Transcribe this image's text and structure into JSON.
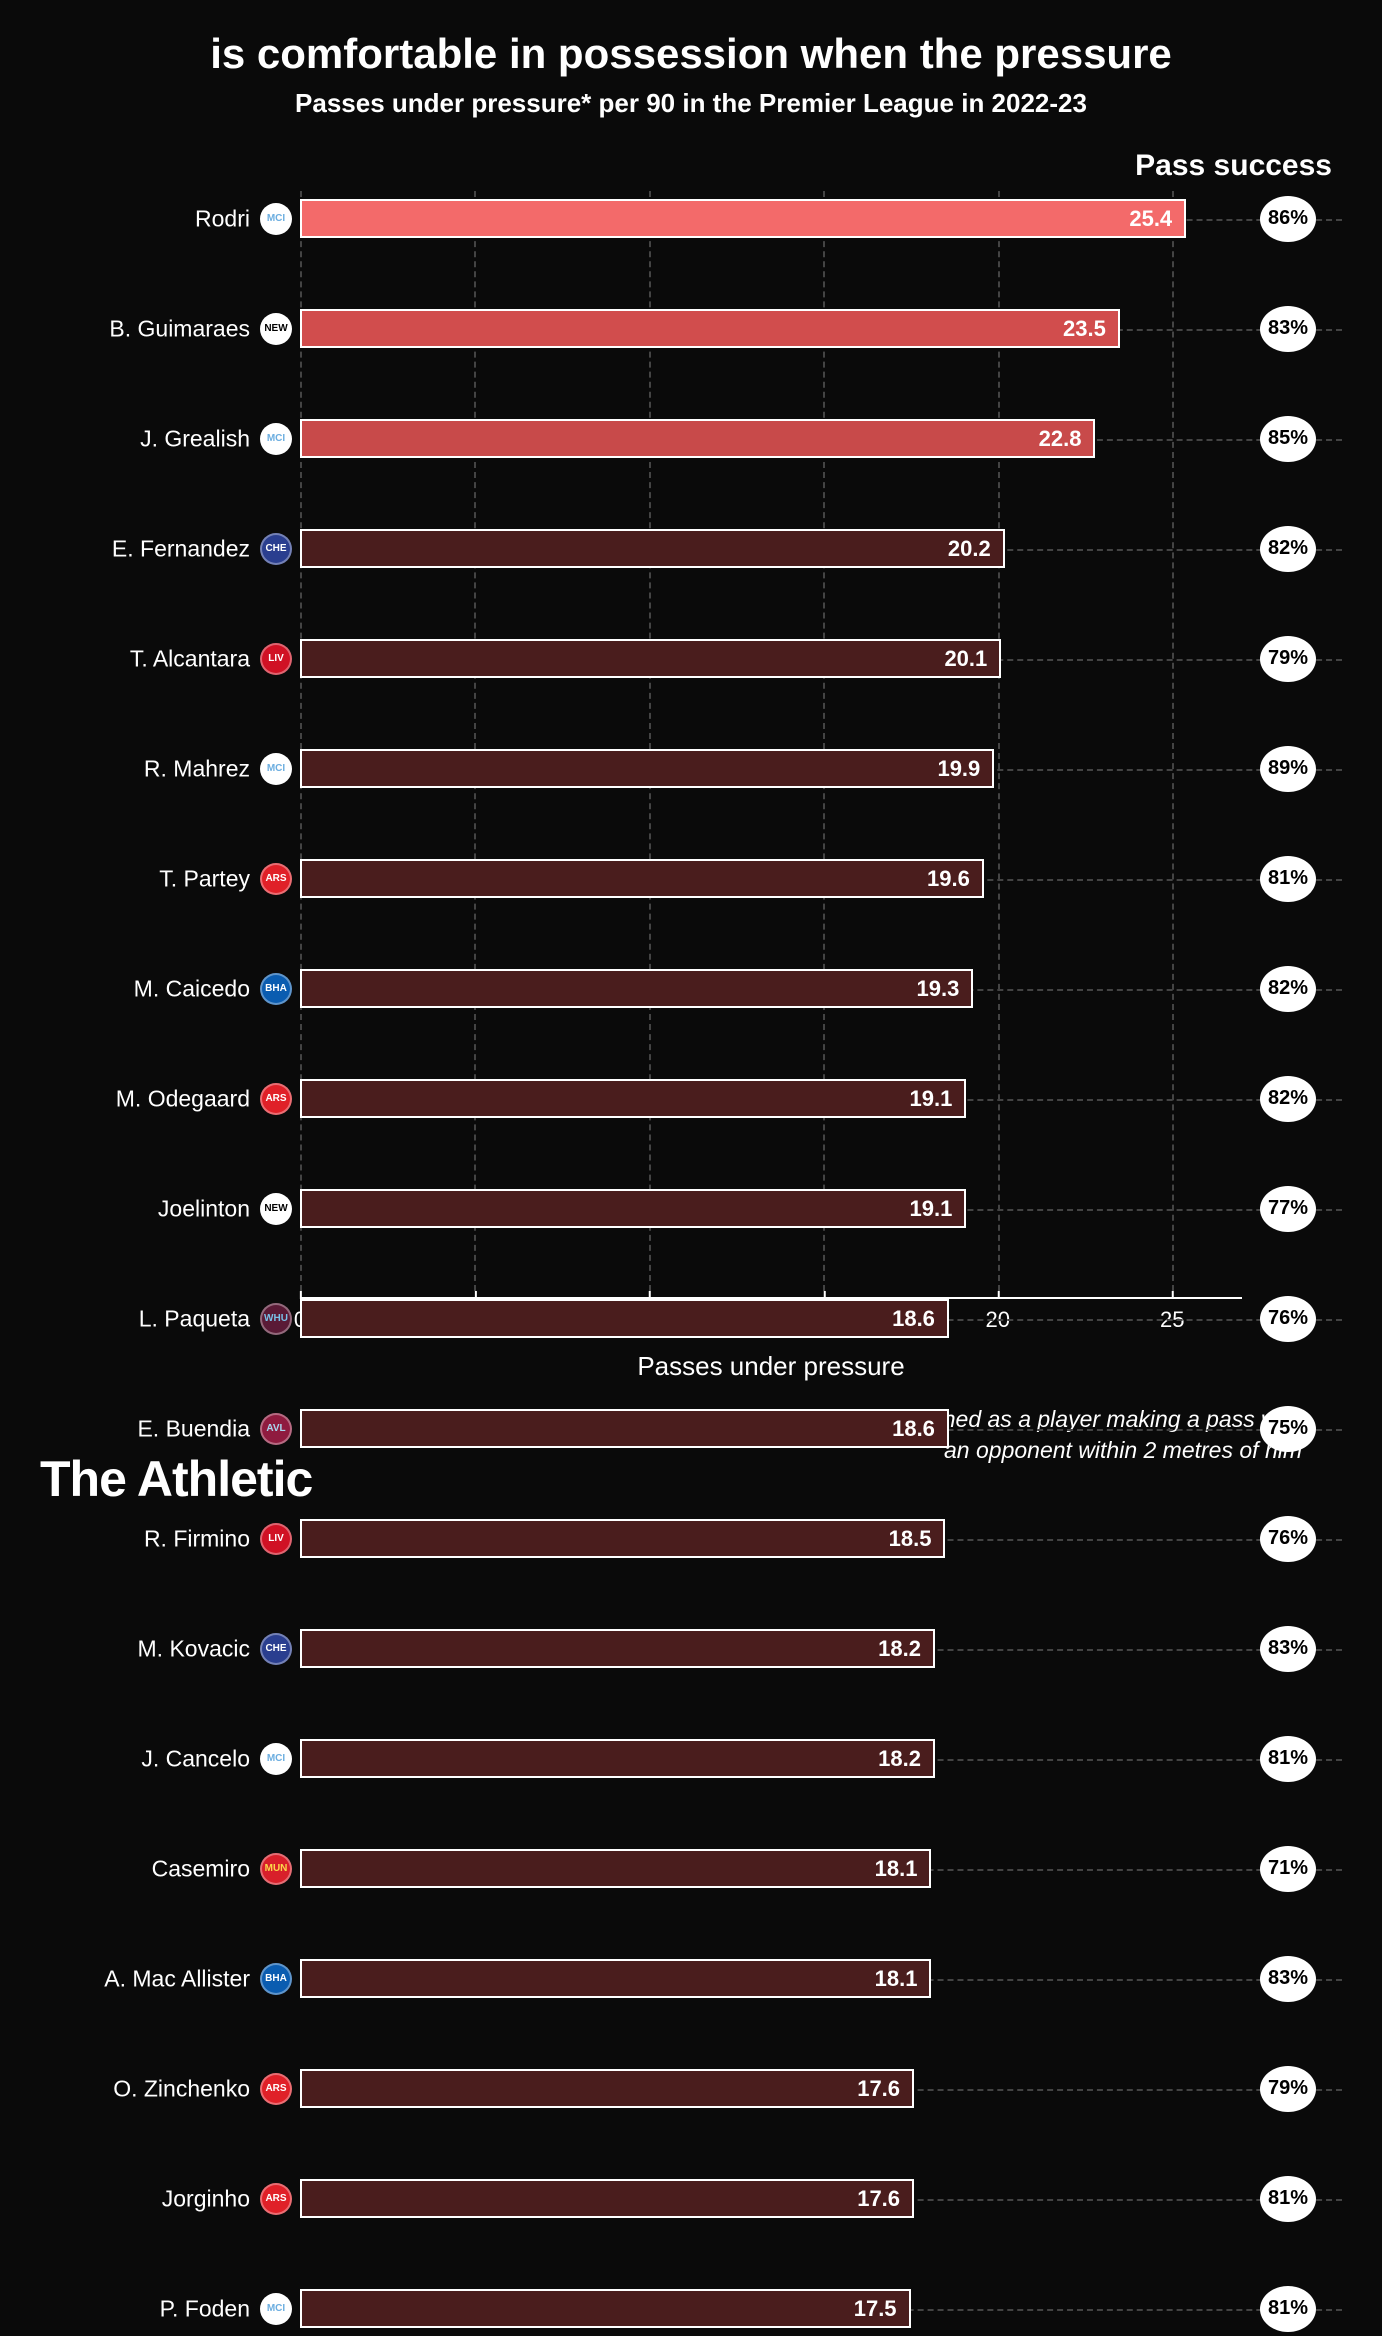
{
  "title": "is comfortable in possession when the pressure",
  "subtitle": "Passes under pressure* per 90 in the Premier League in 2022-23",
  "pass_success_header": "Pass success",
  "x_axis_label": "Passes under pressure",
  "footnote_line1": "*Defined as a player making a pass with",
  "footnote_line2": "an opponent within 2 metres of him",
  "brand": "The Athletic",
  "chart": {
    "type": "horizontal-bar",
    "xmin": 0,
    "xmax": 27,
    "xticks": [
      0,
      5,
      10,
      15,
      20,
      25
    ],
    "bar_colors": {
      "highlight_1": "#f36a6a",
      "highlight_2": "#d14d4d",
      "highlight_3": "#c84a4a",
      "normal": "#4a1d1d"
    },
    "bar_border_color": "#ffffff",
    "background_color": "#0a0a0a",
    "grid_color": "#444444",
    "text_color": "#ffffff",
    "badge_bg": "#ffffff",
    "badge_text": "#000000",
    "title_fontsize": 42,
    "subtitle_fontsize": 26,
    "label_fontsize": 23,
    "value_fontsize": 22
  },
  "clubs": {
    "mancity": {
      "abbr": "MCI",
      "bg": "#ffffff",
      "fg": "#6caee0"
    },
    "newcastle": {
      "abbr": "NEW",
      "bg": "#ffffff",
      "fg": "#000000"
    },
    "chelsea": {
      "abbr": "CHE",
      "bg": "#2a3e8f",
      "fg": "#ffffff"
    },
    "liverpool": {
      "abbr": "LIV",
      "bg": "#d01124",
      "fg": "#ffffff"
    },
    "arsenal": {
      "abbr": "ARS",
      "bg": "#e02028",
      "fg": "#ffffff"
    },
    "brighton": {
      "abbr": "BHA",
      "bg": "#0a5cb0",
      "fg": "#ffffff"
    },
    "westham": {
      "abbr": "WHU",
      "bg": "#5a1a36",
      "fg": "#7ac1e8"
    },
    "villa": {
      "abbr": "AVL",
      "bg": "#8f1b3f",
      "fg": "#a9d7f0"
    },
    "manutd": {
      "abbr": "MUN",
      "bg": "#d81f2a",
      "fg": "#fbd84a"
    }
  },
  "players": [
    {
      "name": "Rodri",
      "club": "mancity",
      "value": 25.4,
      "success": "86%",
      "color_key": "highlight_1"
    },
    {
      "name": "B. Guimaraes",
      "club": "newcastle",
      "value": 23.5,
      "success": "83%",
      "color_key": "highlight_2"
    },
    {
      "name": "J. Grealish",
      "club": "mancity",
      "value": 22.8,
      "success": "85%",
      "color_key": "highlight_3"
    },
    {
      "name": "E. Fernandez",
      "club": "chelsea",
      "value": 20.2,
      "success": "82%",
      "color_key": "normal"
    },
    {
      "name": "T. Alcantara",
      "club": "liverpool",
      "value": 20.1,
      "success": "79%",
      "color_key": "normal"
    },
    {
      "name": "R. Mahrez",
      "club": "mancity",
      "value": 19.9,
      "success": "89%",
      "color_key": "normal"
    },
    {
      "name": "T. Partey",
      "club": "arsenal",
      "value": 19.6,
      "success": "81%",
      "color_key": "normal"
    },
    {
      "name": "M. Caicedo",
      "club": "brighton",
      "value": 19.3,
      "success": "82%",
      "color_key": "normal"
    },
    {
      "name": "M. Odegaard",
      "club": "arsenal",
      "value": 19.1,
      "success": "82%",
      "color_key": "normal"
    },
    {
      "name": "Joelinton",
      "club": "newcastle",
      "value": 19.1,
      "success": "77%",
      "color_key": "normal"
    },
    {
      "name": "L. Paqueta",
      "club": "westham",
      "value": 18.6,
      "success": "76%",
      "color_key": "normal"
    },
    {
      "name": "E. Buendia",
      "club": "villa",
      "value": 18.6,
      "success": "75%",
      "color_key": "normal"
    },
    {
      "name": "R. Firmino",
      "club": "liverpool",
      "value": 18.5,
      "success": "76%",
      "color_key": "normal"
    },
    {
      "name": "M. Kovacic",
      "club": "chelsea",
      "value": 18.2,
      "success": "83%",
      "color_key": "normal"
    },
    {
      "name": "J. Cancelo",
      "club": "mancity",
      "value": 18.2,
      "success": "81%",
      "color_key": "normal"
    },
    {
      "name": "Casemiro",
      "club": "manutd",
      "value": 18.1,
      "success": "71%",
      "color_key": "normal"
    },
    {
      "name": "A. Mac Allister",
      "club": "brighton",
      "value": 18.1,
      "success": "83%",
      "color_key": "normal"
    },
    {
      "name": "O. Zinchenko",
      "club": "arsenal",
      "value": 17.6,
      "success": "79%",
      "color_key": "normal"
    },
    {
      "name": "Jorginho",
      "club": "arsenal",
      "value": 17.6,
      "success": "81%",
      "color_key": "normal"
    },
    {
      "name": "P. Foden",
      "club": "mancity",
      "value": 17.5,
      "success": "81%",
      "color_key": "normal"
    }
  ]
}
